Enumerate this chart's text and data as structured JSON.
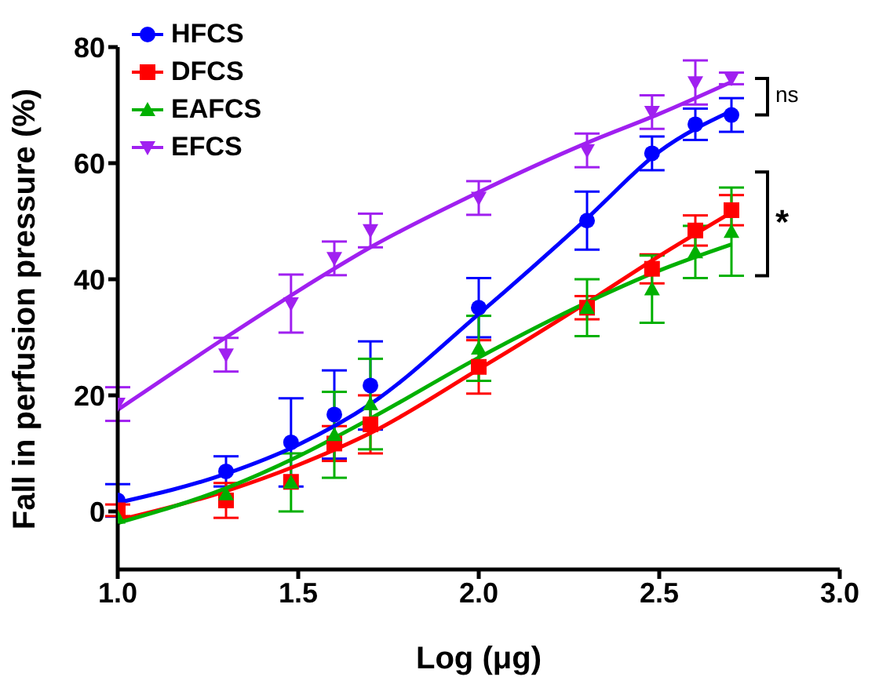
{
  "chart_data": {
    "type": "scatter",
    "xlabel": "Log (μg)",
    "ylabel": "Fall in perfusion pressure (%)",
    "xlim": [
      1.0,
      3.0
    ],
    "xticks": [
      {
        "value": 1,
        "label": "1.0"
      },
      1.5,
      {
        "value": 2,
        "label": "2.0"
      },
      2.5,
      {
        "value": 3,
        "label": "3.0"
      }
    ],
    "ylim": [
      -10,
      80
    ],
    "yticks": [
      0,
      20,
      40,
      60,
      80
    ],
    "legend": "top left",
    "x": [
      1.0,
      1.3,
      1.48,
      1.6,
      1.7,
      2.0,
      2.3,
      2.48,
      2.6,
      2.7
    ],
    "series": [
      {
        "name": "HFCS",
        "color": "#0000ff",
        "marker": "circle",
        "values": [
          1.9,
          6.9,
          11.9,
          16.7,
          21.7,
          35.1,
          50.1,
          61.7,
          66.7,
          68.3
        ],
        "errors": [
          2.8,
          2.6,
          7.6,
          7.6,
          7.6,
          5.1,
          5.0,
          2.9,
          2.7,
          2.9
        ]
      },
      {
        "name": "DFCS",
        "color": "#ff0000",
        "marker": "square",
        "values": [
          0.2,
          1.9,
          5.1,
          11.7,
          15.0,
          24.9,
          35.1,
          41.8,
          48.4,
          51.9
        ],
        "errors": [
          1.0,
          3.0,
          null,
          3.0,
          5.0,
          4.6,
          2.0,
          2.5,
          2.6,
          2.6
        ]
      },
      {
        "name": "EAFCS",
        "color": "#00b000",
        "marker": "triangle",
        "values": [
          -1.0,
          3.0,
          5.0,
          13.2,
          18.5,
          28.1,
          35.1,
          38.3,
          44.7,
          48.2
        ],
        "errors": [
          null,
          null,
          5.0,
          7.4,
          7.8,
          5.6,
          4.9,
          5.8,
          4.5,
          7.6
        ]
      },
      {
        "name": "EFCS",
        "color": "#a020f0",
        "marker": "triangle-down",
        "values": [
          18.5,
          27.0,
          35.8,
          43.6,
          48.4,
          54.0,
          62.2,
          68.8,
          73.9,
          74.6
        ],
        "errors": [
          2.9,
          2.9,
          5.0,
          2.9,
          2.9,
          2.9,
          2.9,
          2.9,
          3.8,
          1.0
        ]
      },
      {
        "type": "line",
        "color": "#0000ff",
        "x": [
          1.0,
          1.3,
          1.5,
          1.7,
          2.0,
          2.3,
          2.5,
          2.7
        ],
        "values": [
          1.5,
          6.5,
          11.5,
          18.5,
          34,
          50.5,
          62,
          69
        ]
      },
      {
        "type": "line",
        "color": "#ff0000",
        "x": [
          1.0,
          1.3,
          1.5,
          1.7,
          2.0,
          2.3,
          2.5,
          2.7
        ],
        "values": [
          -1.5,
          3.5,
          8,
          13.5,
          24.5,
          36,
          44,
          51.5
        ]
      },
      {
        "type": "line",
        "color": "#00b000",
        "x": [
          1.0,
          1.3,
          1.5,
          1.7,
          2.0,
          2.3,
          2.5,
          2.7
        ],
        "values": [
          -2,
          4,
          9.5,
          16,
          26.5,
          36,
          41.5,
          46
        ]
      },
      {
        "type": "line",
        "color": "#a020f0",
        "x": [
          1.0,
          1.3,
          1.5,
          1.7,
          2.0,
          2.3,
          2.5,
          2.7
        ],
        "values": [
          17.5,
          30,
          38,
          45.5,
          55,
          63.5,
          68.5,
          74
        ]
      }
    ],
    "annotations": [
      "ns",
      "*"
    ]
  }
}
